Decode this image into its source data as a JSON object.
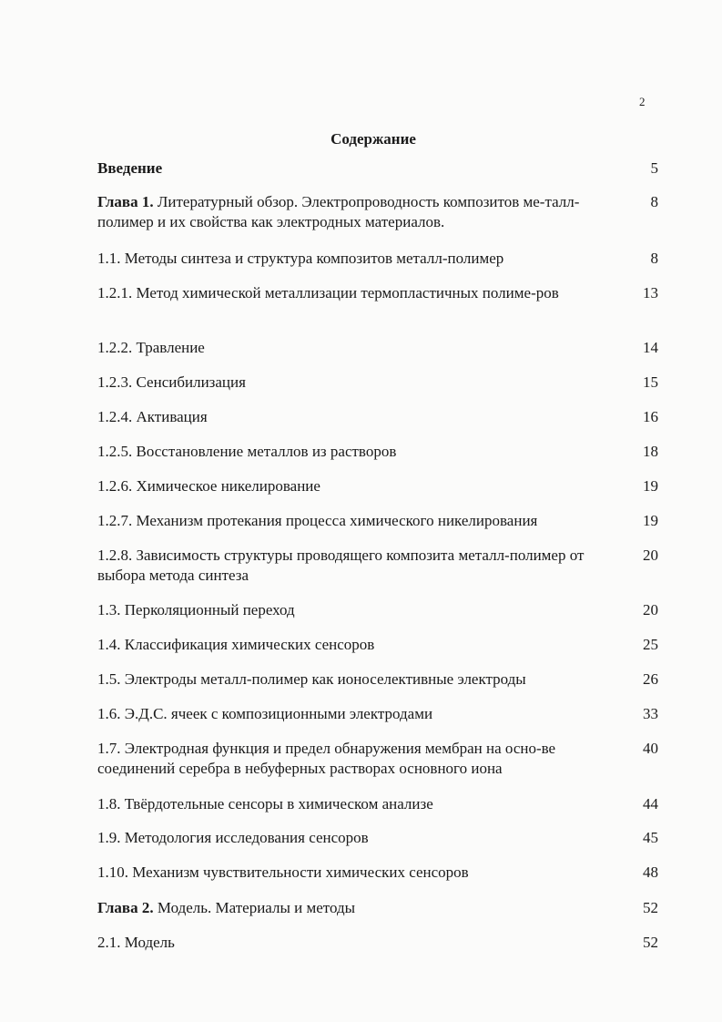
{
  "page_number": "2",
  "title": "Содержание",
  "entries": [
    {
      "bold": "Введение",
      "text": "",
      "page": "5"
    },
    {
      "bold": "Глава 1.",
      "text": " Литературный обзор. Электропроводность композитов ме-талл-полимер и их свойства как электродных материалов.",
      "page": "8"
    },
    {
      "bold": "",
      "text": "1.1. Методы синтеза и структура композитов металл-полимер",
      "page": "8"
    },
    {
      "bold": "",
      "text": "1.2.1. Метод химической металлизации термопластичных полиме-ров",
      "page": "13"
    },
    {
      "bold": "",
      "text": "1.2.2. Травление",
      "page": "14"
    },
    {
      "bold": "",
      "text": "1.2.3. Сенсибилизация",
      "page": "15"
    },
    {
      "bold": "",
      "text": "1.2.4. Активация",
      "page": "16"
    },
    {
      "bold": "",
      "text": "1.2.5. Восстановление металлов из растворов",
      "page": "18"
    },
    {
      "bold": "",
      "text": "1.2.6. Химическое никелирование",
      "page": "19"
    },
    {
      "bold": "",
      "text": "1.2.7. Механизм протекания процесса химического никелирования",
      "page": "19"
    },
    {
      "bold": "",
      "text": "1.2.8. Зависимость структуры проводящего композита металл-полимер от выбора метода синтеза",
      "page": "20"
    },
    {
      "bold": "",
      "text": "1.3. Перколяционный переход",
      "page": "20"
    },
    {
      "bold": "",
      "text": "1.4. Классификация химических сенсоров",
      "page": "25"
    },
    {
      "bold": "",
      "text": "1.5. Электроды металл-полимер как ионоселективные электроды",
      "page": "26"
    },
    {
      "bold": "",
      "text": "1.6. Э.Д.С. ячеек с композиционными электродами",
      "page": "33"
    },
    {
      "bold": "",
      "text": "1.7. Электродная функция и предел обнаружения мембран на осно-ве соединений серебра в небуферных растворах основного иона",
      "page": "40"
    },
    {
      "bold": "",
      "text": "1.8. Твёрдотельные сенсоры в химическом анализе",
      "page": "44"
    },
    {
      "bold": "",
      "text": "1.9. Методология исследования сенсоров",
      "page": "45"
    },
    {
      "bold": "",
      "text": "1.10. Механизм чувствительности химических сенсоров",
      "page": "48"
    },
    {
      "bold": "Глава 2.",
      "text": " Модель. Материалы и методы",
      "page": "52"
    },
    {
      "bold": "",
      "text": "2.1. Модель",
      "page": "52"
    }
  ]
}
